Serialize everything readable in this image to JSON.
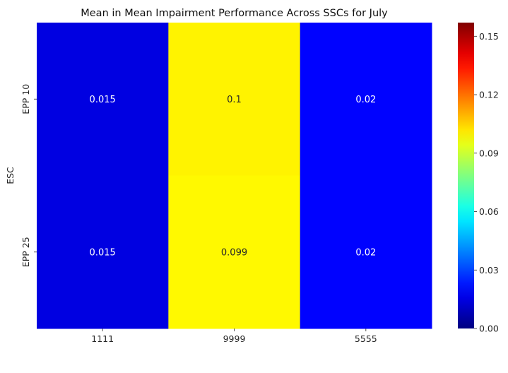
{
  "chart_data": {
    "type": "heatmap",
    "title": "Mean in Mean Impairment Performance Across SSCs for July",
    "xlabel": "",
    "ylabel": "ESC",
    "x_categories": [
      "1111",
      "9999",
      "5555"
    ],
    "y_categories": [
      "EPP 10",
      "EPP 25"
    ],
    "values": [
      [
        0.015,
        0.1,
        0.02
      ],
      [
        0.015,
        0.099,
        0.02
      ]
    ],
    "cell_labels": [
      [
        "0.015",
        "0.1",
        "0.02"
      ],
      [
        "0.015",
        "0.099",
        "0.02"
      ]
    ],
    "colormap": "jet",
    "vmin": 0.0,
    "vmax": 0.157,
    "colorbar_ticks": [
      0.0,
      0.03,
      0.06,
      0.09,
      0.12,
      0.15
    ],
    "colorbar_tick_labels": [
      "0.00",
      "0.03",
      "0.06",
      "0.09",
      "0.12",
      "0.15"
    ],
    "grid": false
  }
}
